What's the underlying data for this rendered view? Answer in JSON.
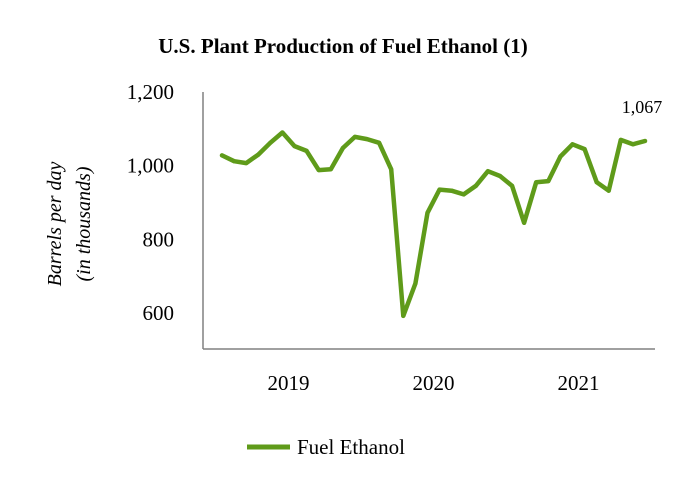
{
  "chart_data": {
    "type": "line",
    "title": "U.S. Plant Production of Fuel Ethanol (1)",
    "ylabel_lines": [
      "Barrels per day",
      "(in thousands)"
    ],
    "ylim": [
      600,
      1200
    ],
    "yticks": [
      600,
      800,
      1000,
      1200
    ],
    "ytick_labels": [
      "600",
      "800",
      "1,000",
      "1,200"
    ],
    "x_tick_labels": [
      "2019",
      "2020",
      "2021"
    ],
    "x_tick_index": [
      5.5,
      17.5,
      29.5
    ],
    "grid": false,
    "legend_position": "bottom",
    "series": [
      {
        "name": "Fuel Ethanol",
        "color": "#5f9b1a",
        "values": [
          1028,
          1012,
          1007,
          1030,
          1062,
          1090,
          1053,
          1040,
          988,
          990,
          1048,
          1078,
          1072,
          1062,
          990,
          592,
          680,
          872,
          935,
          932,
          922,
          945,
          985,
          972,
          945,
          845,
          955,
          958,
          1025,
          1058,
          1045,
          955,
          932,
          1070,
          1058,
          1067
        ]
      }
    ],
    "annotations": [
      {
        "text": "1,067",
        "series_index": 0,
        "point_index": 35
      }
    ]
  }
}
